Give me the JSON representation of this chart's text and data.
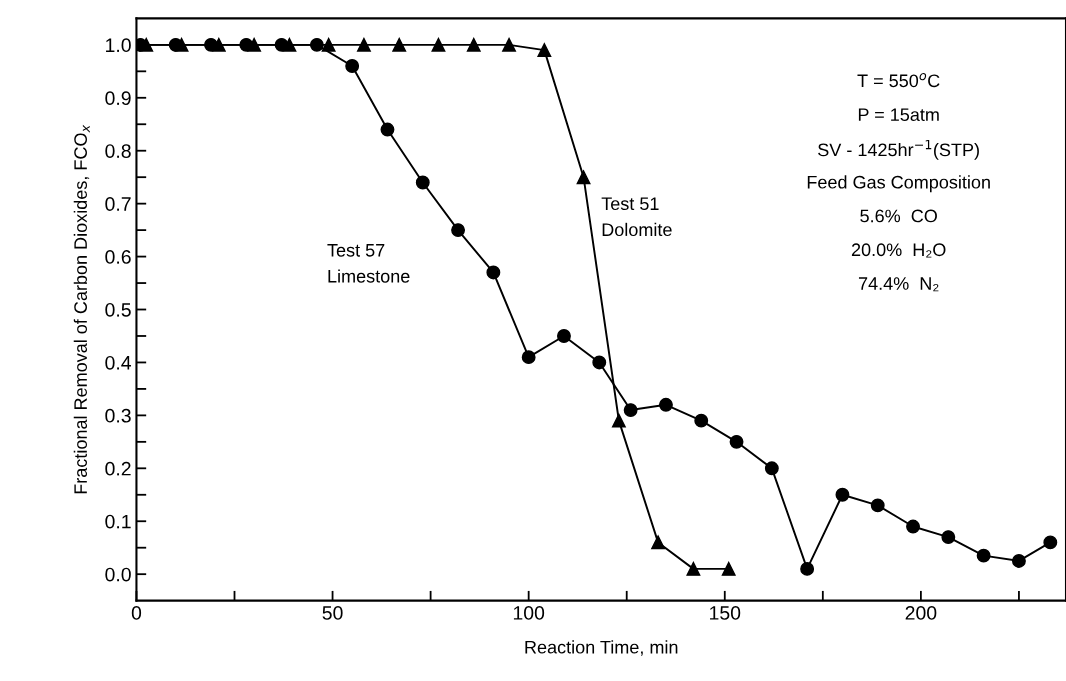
{
  "chart_data": {
    "type": "line",
    "xlabel": "Reaction Time, min",
    "ylabel": "Fractional Removal of Carbon Dioxides, FCO$_{x}$",
    "xlim": [
      0,
      237
    ],
    "ylim": [
      -0.05,
      1.05
    ],
    "xticks": [
      0,
      {
        "value": 25,
        "label": null
      },
      50,
      {
        "value": 75,
        "label": null
      },
      100,
      {
        "value": 125,
        "label": null
      },
      150,
      {
        "value": 175,
        "label": null
      },
      200,
      {
        "value": 225,
        "label": null
      }
    ],
    "yticks": [
      {
        "value": 0,
        "label": "0.0"
      },
      {
        "value": 0.05,
        "label": null
      },
      {
        "value": 0.1,
        "label": "0.1"
      },
      {
        "value": 0.15,
        "label": null
      },
      {
        "value": 0.2,
        "label": "0.2"
      },
      {
        "value": 0.25,
        "label": null
      },
      {
        "value": 0.3,
        "label": "0.3"
      },
      {
        "value": 0.35,
        "label": null
      },
      {
        "value": 0.4,
        "label": "0.4"
      },
      {
        "value": 0.45,
        "label": null
      },
      {
        "value": 0.5,
        "label": "0.5"
      },
      {
        "value": 0.55,
        "label": null
      },
      {
        "value": 0.6,
        "label": "0.6"
      },
      {
        "value": 0.65,
        "label": null
      },
      {
        "value": 0.7,
        "label": "0.7"
      },
      {
        "value": 0.75,
        "label": null
      },
      {
        "value": 0.8,
        "label": "0.8"
      },
      {
        "value": 0.85,
        "label": null
      },
      {
        "value": 0.9,
        "label": "0.9"
      },
      {
        "value": 0.95,
        "label": null
      },
      {
        "value": 1,
        "label": "1.0"
      }
    ],
    "grid": false,
    "legend": false,
    "line_style": "solid",
    "series": [
      {
        "name": "Test 57\nLimestone",
        "color": "#000000",
        "marker": "circle",
        "x": [
          1,
          10,
          19,
          28,
          37,
          46,
          55,
          64,
          73,
          82,
          91,
          100,
          109,
          118,
          126,
          135,
          144,
          153,
          162,
          171,
          180,
          189,
          198,
          207,
          216,
          225,
          233
        ],
        "values": [
          1.0,
          1.0,
          1.0,
          1.0,
          1.0,
          1.0,
          0.96,
          0.84,
          0.74,
          0.65,
          0.57,
          0.41,
          0.45,
          0.4,
          0.31,
          0.32,
          0.29,
          0.25,
          0.2,
          0.01,
          0.15,
          0.13,
          0.09,
          0.07,
          0.035,
          0.025,
          0.06
        ]
      },
      {
        "name": "Test 51\nDolomite",
        "color": "#000000",
        "marker": "triangle",
        "x": [
          2.5,
          11.5,
          21,
          30,
          39,
          49,
          58,
          67,
          77,
          86,
          95,
          104,
          114,
          123,
          133,
          142,
          151
        ],
        "values": [
          1.0,
          1.0,
          1.0,
          1.0,
          1.0,
          1.0,
          1.0,
          1.0,
          1.0,
          1.0,
          1.0,
          0.99,
          0.75,
          0.29,
          0.06,
          0.01,
          0.01
        ]
      }
    ],
    "annotations": [
      "T = 550$^{o}$C",
      "P = 15atm",
      "SV - 1425hr$^{−1}$(STP)",
      "Feed Gas Composition",
      "5.6%  CO",
      "20.0%  H₂O",
      "74.4%  N₂"
    ]
  }
}
